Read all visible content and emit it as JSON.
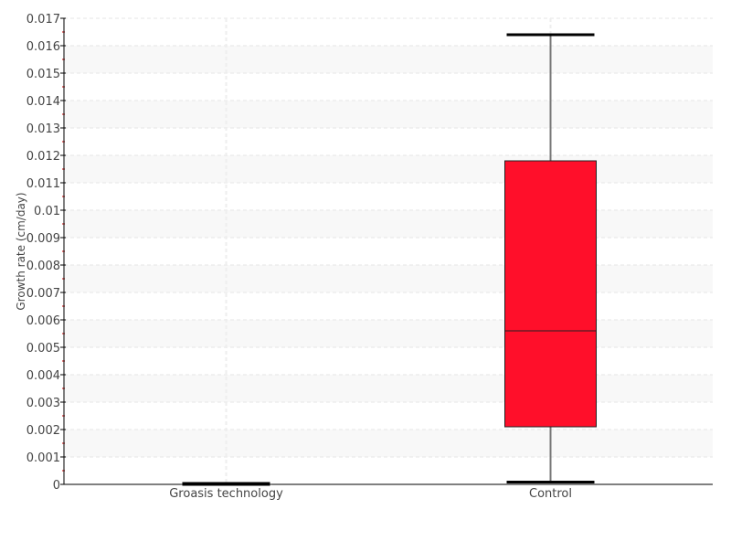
{
  "chart_data": {
    "type": "box",
    "title": "",
    "xlabel": "",
    "ylabel": "Growth rate (cm/day)",
    "ylim": [
      0,
      0.017
    ],
    "yticks": [
      "0",
      "0.001",
      "0.002",
      "0.003",
      "0.004",
      "0.005",
      "0.006",
      "0.007",
      "0.008",
      "0.009",
      "0.01",
      "0.011",
      "0.012",
      "0.013",
      "0.014",
      "0.015",
      "0.016",
      "0.017"
    ],
    "grid": true,
    "categories": [
      "Groasis technology",
      "Control"
    ],
    "boxes": [
      {
        "category": "Groasis technology",
        "min": 0,
        "q1": 0,
        "median": 0,
        "q3": 0,
        "max": 0
      },
      {
        "category": "Control",
        "min": 5e-05,
        "q1": 0.0021,
        "median": 0.0056,
        "q3": 0.0118,
        "max": 0.0164
      }
    ],
    "colors": {
      "box": "#ff0f2a",
      "band": "#f8f8f8",
      "minor_tick": "#cc0000"
    }
  }
}
